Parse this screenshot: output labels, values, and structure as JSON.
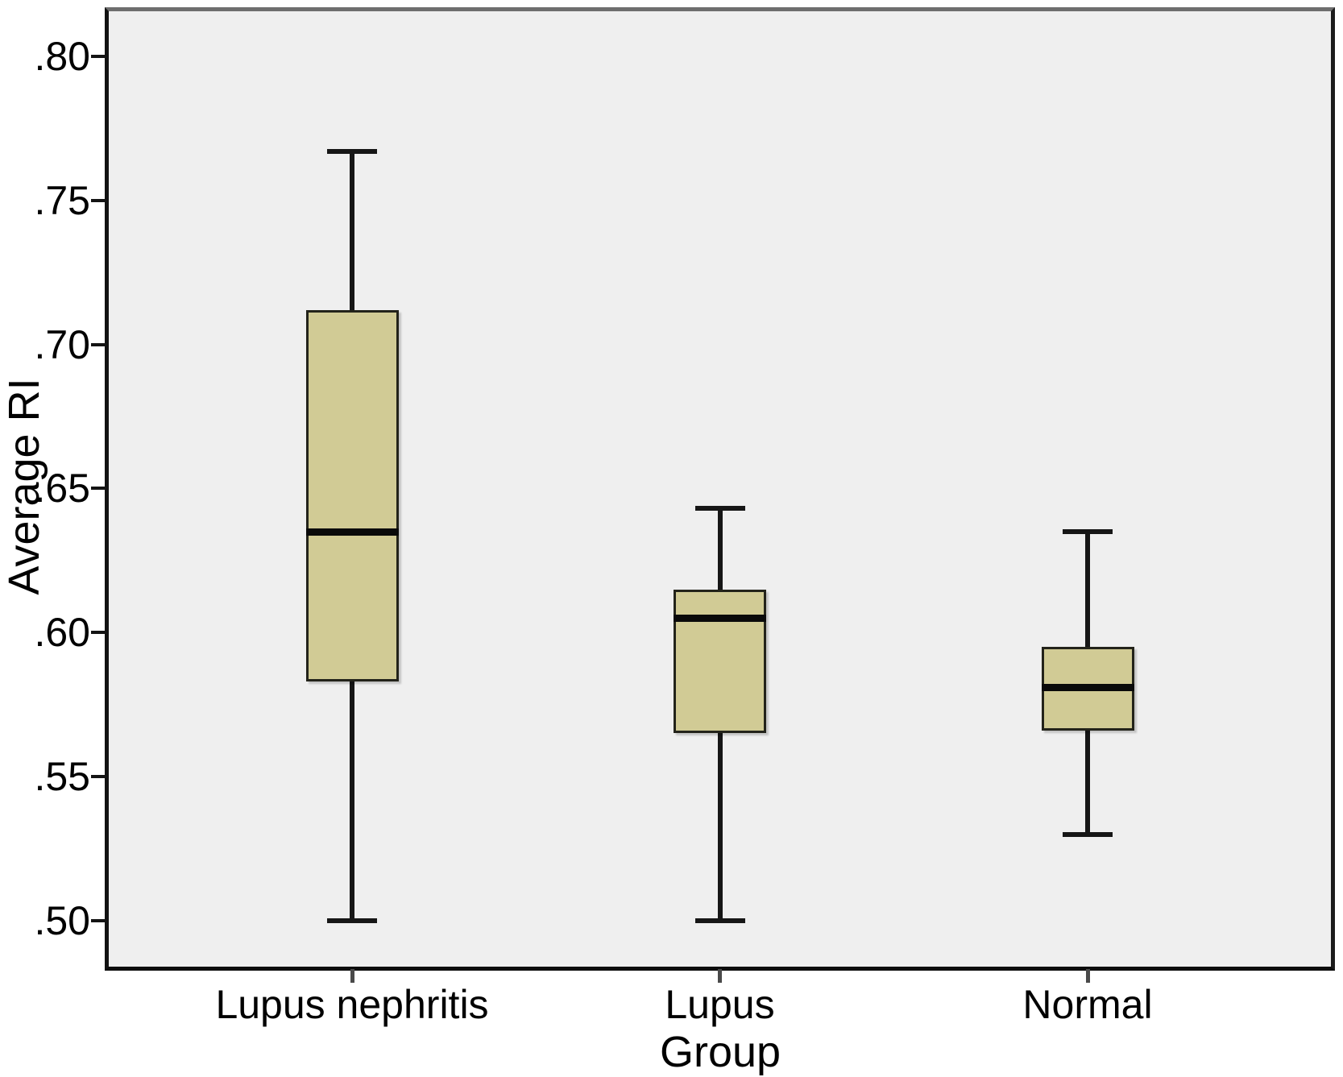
{
  "chart_data": {
    "type": "box",
    "title": "",
    "xlabel": "Group",
    "ylabel": "Average RI",
    "categories": [
      "Lupus nephritis",
      "Lupus",
      "Normal"
    ],
    "y_ticks": [
      ".80",
      ".75",
      ".70",
      ".65",
      ".60",
      ".55",
      ".50"
    ],
    "y_tick_values": [
      0.8,
      0.75,
      0.7,
      0.65,
      0.6,
      0.55,
      0.5
    ],
    "ylim": [
      0.483,
      0.817
    ],
    "grid": false,
    "legend": "none",
    "series": [
      {
        "name": "Lupus nephritis",
        "min": 0.5,
        "q1": 0.583,
        "median": 0.635,
        "q3": 0.712,
        "max": 0.767
      },
      {
        "name": "Lupus",
        "min": 0.5,
        "q1": 0.565,
        "median": 0.605,
        "q3": 0.615,
        "max": 0.643
      },
      {
        "name": "Normal",
        "min": 0.53,
        "q1": 0.566,
        "median": 0.581,
        "q3": 0.595,
        "max": 0.635
      }
    ],
    "colors": {
      "box_fill": "#d1cb95",
      "box_border": "#23231a",
      "line": "#161616",
      "plot_background": "#efefef",
      "frame_top": "#6e6e6e",
      "frame": "#121212"
    }
  }
}
